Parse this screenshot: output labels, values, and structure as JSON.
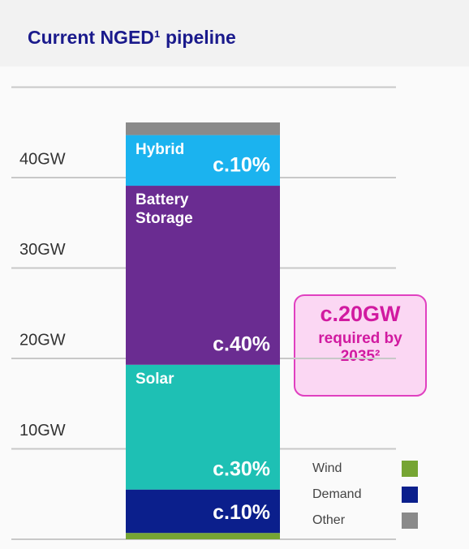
{
  "chart_data": {
    "type": "stacked_bar",
    "title": "Current NGED¹ pipeline",
    "categories": [
      null
    ],
    "series": [
      {
        "name": "Wind",
        "color": "#76a533",
        "values": [
          0.7
        ],
        "legend": true
      },
      {
        "name": "Demand",
        "color": "#0b1f8c",
        "values": [
          4.8
        ],
        "legend": true,
        "share_label": "c.10%"
      },
      {
        "name": "Solar",
        "color": "#1ec0b4",
        "values": [
          13.8
        ],
        "share_label": "c.30%"
      },
      {
        "name": "Battery Storage",
        "color": "#6a2c91",
        "values": [
          19.8
        ],
        "share_label": "c.40%"
      },
      {
        "name": "Hybrid",
        "color": "#1bb3ef",
        "values": [
          5.6
        ],
        "share_label": "c.10%"
      },
      {
        "name": "Other",
        "color": "#8a8a8a",
        "values": [
          1.4
        ],
        "legend": true
      }
    ],
    "ylim": [
      0,
      50
    ],
    "yticks": [
      {
        "value": 10,
        "label": "10GW"
      },
      {
        "value": 20,
        "label": "20GW"
      },
      {
        "value": 30,
        "label": "30GW"
      },
      {
        "value": 40,
        "label": "40GW"
      }
    ],
    "grid": true,
    "callout": {
      "headline": "c.20GW",
      "text": "required by 2035²"
    }
  }
}
